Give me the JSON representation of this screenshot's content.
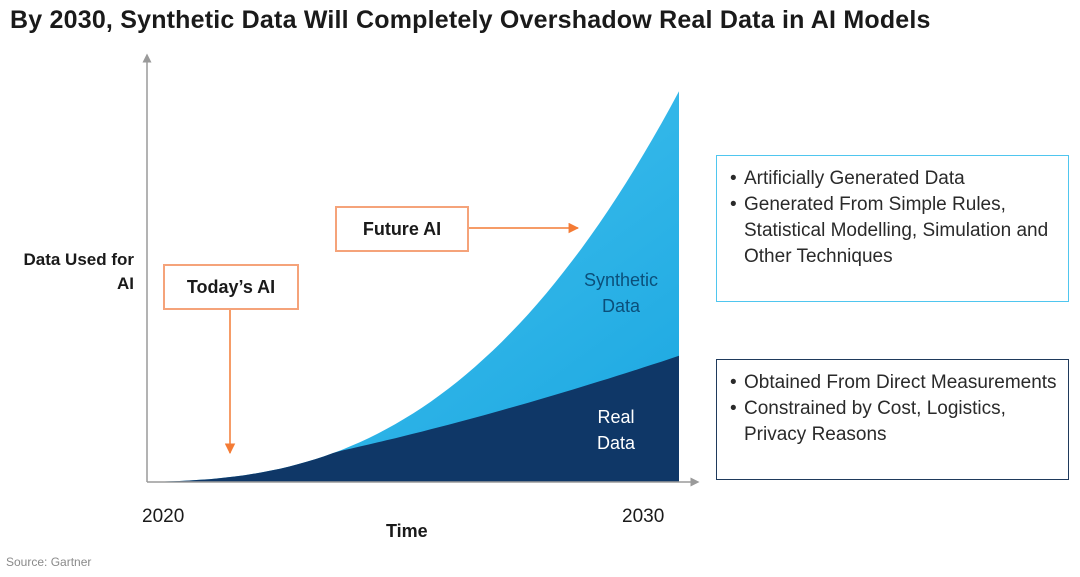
{
  "title": "By 2030, Synthetic Data Will Completely Overshadow Real Data in AI Models",
  "source": "Source: Gartner",
  "callouts": {
    "today": "Today’s AI",
    "future": "Future AI"
  },
  "descriptions": {
    "synthetic": [
      "Artificially Generated Data",
      "Generated From Simple Rules, Statistical Modelling, Simulation and Other Techniques"
    ],
    "real": [
      "Obtained From Direct Measurements",
      "Constrained by Cost, Logistics, Privacy Reasons"
    ]
  },
  "colors": {
    "synthetic": "#1ab2ea",
    "synthetic_light": "#4cc8f2",
    "real": "#0f3767",
    "callout_border": "#f5a37a",
    "arrow": "#f47b35",
    "axis": "#9a9a9a"
  },
  "chart_data": {
    "type": "area",
    "title": "By 2030, Synthetic Data Will Completely Overshadow Real Data in AI Models",
    "xlabel": "Time",
    "ylabel": "Data Used for AI",
    "x_ticks": [
      "2020",
      "2030"
    ],
    "xlim": [
      2020,
      2030
    ],
    "stacked": true,
    "series": [
      {
        "name": "Real Data",
        "label_lines": [
          "Real",
          "Data"
        ],
        "x": [
          2020,
          2030
        ],
        "curve": "slow-growth",
        "end_share_of_total": 0.31
      },
      {
        "name": "Synthetic Data",
        "label_lines": [
          "Synthetic",
          "Data"
        ],
        "x": [
          2020,
          2030
        ],
        "curve": "exponential",
        "end_share_of_total": 0.69
      }
    ],
    "annotations": [
      "Today’s AI",
      "Future AI"
    ],
    "grid": false,
    "legend": "none"
  }
}
